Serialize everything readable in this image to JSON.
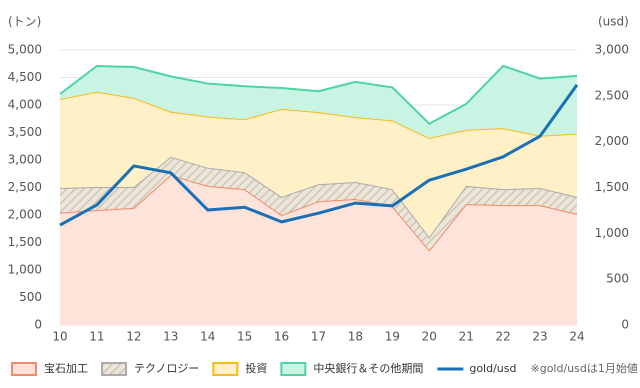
{
  "chart_data": {
    "type": "area",
    "stacked": true,
    "y_label": "(トン)",
    "y2_label": "(usd)",
    "note": "※gold/usdは1月始値",
    "categories": [
      "10",
      "11",
      "12",
      "13",
      "14",
      "15",
      "16",
      "17",
      "18",
      "19",
      "20",
      "21",
      "22",
      "23",
      "24"
    ],
    "ylim": [
      0,
      5000
    ],
    "yticks": [
      0,
      {
        "value": 500,
        "label": "500"
      },
      {
        "value": 1000,
        "label": "1,000"
      },
      {
        "value": 1500,
        "label": "1,500"
      },
      {
        "value": 2000,
        "label": "2,000"
      },
      {
        "value": 2500,
        "label": "2,500"
      },
      {
        "value": 3000,
        "label": "3,000"
      },
      {
        "value": 3500,
        "label": "3,500"
      },
      {
        "value": 4000,
        "label": "4,000"
      },
      {
        "value": 4500,
        "label": "4,500"
      },
      {
        "value": 5000,
        "label": "5,000"
      }
    ],
    "y2lim": [
      0,
      3000
    ],
    "y2ticks": [
      0,
      500,
      {
        "value": 1000,
        "label": "1,000"
      },
      {
        "value": 1500,
        "label": "1,500"
      },
      {
        "value": 2000,
        "label": "2,000"
      },
      {
        "value": 2500,
        "label": "2,500"
      },
      {
        "value": 3000,
        "label": "3,000"
      }
    ],
    "grid": true,
    "series": [
      {
        "name": "宝石加工",
        "color": "#f08a6a",
        "fill": "#fde3da",
        "values": [
          2040,
          2090,
          2130,
          2730,
          2530,
          2470,
          2000,
          2250,
          2290,
          2160,
          1360,
          2200,
          2180,
          2180,
          2020
        ]
      },
      {
        "name": "テクノロジー",
        "color": "#aaaaaa",
        "fill": "#e4ddd0",
        "hatch": true,
        "values": [
          450,
          420,
          380,
          330,
          330,
          310,
          330,
          310,
          310,
          310,
          240,
          330,
          290,
          310,
          310
        ]
      },
      {
        "name": "投資",
        "color": "#f5bb18",
        "fill": "#fff0c8",
        "values": [
          1620,
          1730,
          1620,
          820,
          930,
          960,
          1600,
          1310,
          1180,
          1250,
          1800,
          1020,
          1110,
          950,
          1150
        ]
      },
      {
        "name": "中央銀行＆その他期間",
        "color": "#4fd3a2",
        "fill": "#c9f3e3",
        "values": [
          90,
          470,
          560,
          640,
          600,
          600,
          380,
          380,
          640,
          600,
          260,
          470,
          1130,
          1040,
          1050
        ]
      },
      {
        "name": "gold/usd",
        "color": "#1a6fb5",
        "type": "line",
        "axis": "y2",
        "values": [
          1090,
          1310,
          1735,
          1660,
          1255,
          1285,
          1125,
          1220,
          1330,
          1300,
          1580,
          1700,
          1835,
          2060,
          2620
        ]
      }
    ]
  }
}
